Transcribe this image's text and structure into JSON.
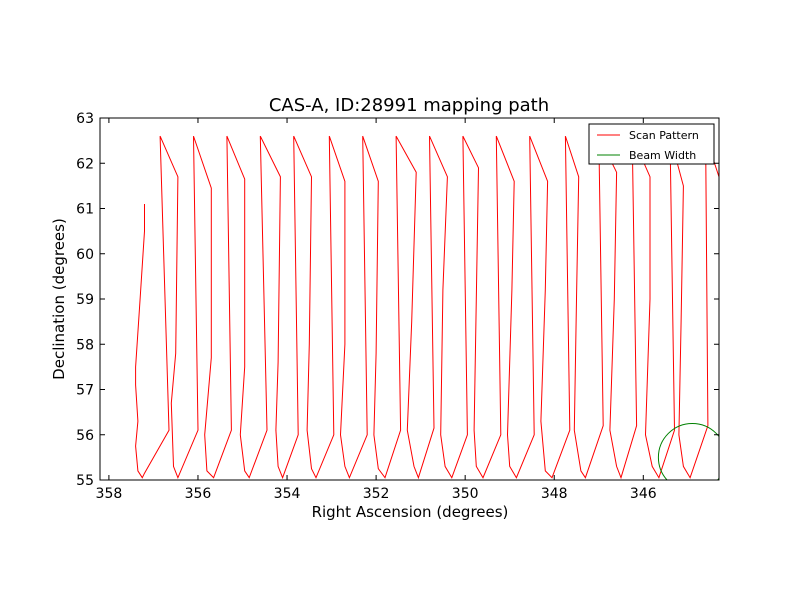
{
  "chart_data": {
    "type": "line",
    "title": "CAS-A, ID:28991 mapping path",
    "xlabel": "Right Ascension (degrees)",
    "ylabel": "Declination (degrees)",
    "xlim": [
      358.2,
      344.3
    ],
    "ylim": [
      55,
      63
    ],
    "x_ticks": [
      358,
      356,
      354,
      352,
      350,
      348,
      346
    ],
    "y_ticks": [
      55,
      56,
      57,
      58,
      59,
      60,
      61,
      62,
      63
    ],
    "x_inverted": true,
    "grid": false,
    "legend_position": "top-right",
    "colors": {
      "scan": "#ff0000",
      "beam": "#008000"
    },
    "series": [
      {
        "name": "Scan Pattern",
        "points": [
          [
            357.2,
            61.1
          ],
          [
            357.2,
            60.5
          ],
          [
            357.3,
            59
          ],
          [
            357.4,
            57.5
          ],
          [
            357.4,
            57.1
          ],
          [
            357.35,
            56.3
          ],
          [
            357.4,
            55.75
          ],
          [
            357.35,
            55.2
          ],
          [
            357.25,
            55.05
          ],
          [
            357.2,
            55.15
          ],
          [
            356.65,
            56.1
          ],
          [
            356.85,
            62.6
          ],
          [
            356.45,
            61.7
          ],
          [
            356.5,
            57.8
          ],
          [
            356.6,
            56.7
          ],
          [
            356.55,
            55.3
          ],
          [
            356.45,
            55.05
          ],
          [
            356.0,
            56.1
          ],
          [
            356.1,
            62.6
          ],
          [
            355.7,
            61.45
          ],
          [
            355.7,
            57.7
          ],
          [
            355.85,
            56.0
          ],
          [
            355.8,
            55.2
          ],
          [
            355.65,
            55.05
          ],
          [
            355.25,
            56.1
          ],
          [
            355.35,
            62.6
          ],
          [
            354.95,
            61.65
          ],
          [
            354.95,
            57.5
          ],
          [
            355.05,
            56.0
          ],
          [
            354.95,
            55.2
          ],
          [
            354.85,
            55.05
          ],
          [
            354.45,
            56.1
          ],
          [
            354.6,
            62.6
          ],
          [
            354.15,
            61.7
          ],
          [
            354.2,
            57.6
          ],
          [
            354.25,
            56.1
          ],
          [
            354.2,
            55.3
          ],
          [
            354.1,
            55.05
          ],
          [
            353.75,
            56.0
          ],
          [
            353.85,
            62.6
          ],
          [
            353.45,
            61.7
          ],
          [
            353.5,
            58.0
          ],
          [
            353.55,
            56.1
          ],
          [
            353.45,
            55.25
          ],
          [
            353.35,
            55.05
          ],
          [
            352.95,
            56.0
          ],
          [
            353.05,
            62.6
          ],
          [
            352.7,
            61.6
          ],
          [
            352.7,
            58.0
          ],
          [
            352.8,
            56.0
          ],
          [
            352.7,
            55.3
          ],
          [
            352.6,
            55.05
          ],
          [
            352.2,
            56.0
          ],
          [
            352.3,
            62.6
          ],
          [
            351.95,
            61.6
          ],
          [
            352.0,
            57.8
          ],
          [
            352.05,
            56.0
          ],
          [
            351.95,
            55.25
          ],
          [
            351.8,
            55.05
          ],
          [
            351.45,
            56.1
          ],
          [
            351.55,
            62.6
          ],
          [
            351.1,
            61.8
          ],
          [
            351.2,
            58.5
          ],
          [
            351.3,
            56.1
          ],
          [
            351.15,
            55.3
          ],
          [
            351.05,
            55.05
          ],
          [
            350.7,
            56.15
          ],
          [
            350.8,
            62.6
          ],
          [
            350.4,
            61.7
          ],
          [
            350.5,
            59.2
          ],
          [
            350.55,
            56.0
          ],
          [
            350.45,
            55.3
          ],
          [
            350.3,
            55.05
          ],
          [
            349.95,
            56.0
          ],
          [
            350.05,
            62.6
          ],
          [
            349.7,
            61.9
          ],
          [
            349.75,
            59.0
          ],
          [
            349.8,
            56.1
          ],
          [
            349.75,
            55.3
          ],
          [
            349.6,
            55.05
          ],
          [
            349.2,
            56.0
          ],
          [
            349.3,
            62.6
          ],
          [
            348.9,
            61.6
          ],
          [
            348.95,
            59.2
          ],
          [
            349.05,
            56.0
          ],
          [
            349.0,
            55.3
          ],
          [
            348.85,
            55.05
          ],
          [
            348.45,
            56.0
          ],
          [
            348.55,
            62.6
          ],
          [
            348.15,
            61.6
          ],
          [
            348.2,
            59.2
          ],
          [
            348.3,
            56.3
          ],
          [
            348.2,
            55.2
          ],
          [
            348.05,
            55.05
          ],
          [
            347.65,
            56.1
          ],
          [
            347.75,
            62.6
          ],
          [
            347.45,
            61.7
          ],
          [
            347.5,
            59.0
          ],
          [
            347.55,
            56.1
          ],
          [
            347.4,
            55.2
          ],
          [
            347.3,
            55.05
          ],
          [
            346.9,
            56.2
          ],
          [
            347.0,
            62.6
          ],
          [
            346.6,
            61.8
          ],
          [
            346.65,
            59.0
          ],
          [
            346.75,
            56.1
          ],
          [
            346.6,
            55.3
          ],
          [
            346.5,
            55.05
          ],
          [
            346.15,
            56.2
          ],
          [
            346.25,
            62.6
          ],
          [
            345.85,
            61.7
          ],
          [
            345.85,
            59.0
          ],
          [
            345.95,
            56.0
          ],
          [
            345.8,
            55.3
          ],
          [
            345.65,
            55.05
          ],
          [
            345.3,
            56.1
          ],
          [
            345.4,
            62.6
          ],
          [
            345.1,
            61.5
          ],
          [
            345.15,
            58.5
          ],
          [
            345.2,
            56.0
          ],
          [
            345.1,
            55.3
          ],
          [
            344.95,
            55.05
          ],
          [
            344.55,
            56.2
          ],
          [
            344.6,
            62.6
          ],
          [
            344.3,
            61.7
          ]
        ]
      },
      {
        "name": "Beam Width",
        "center": [
          344.9,
          55.5
        ],
        "radius_deg": 0.75
      }
    ]
  }
}
